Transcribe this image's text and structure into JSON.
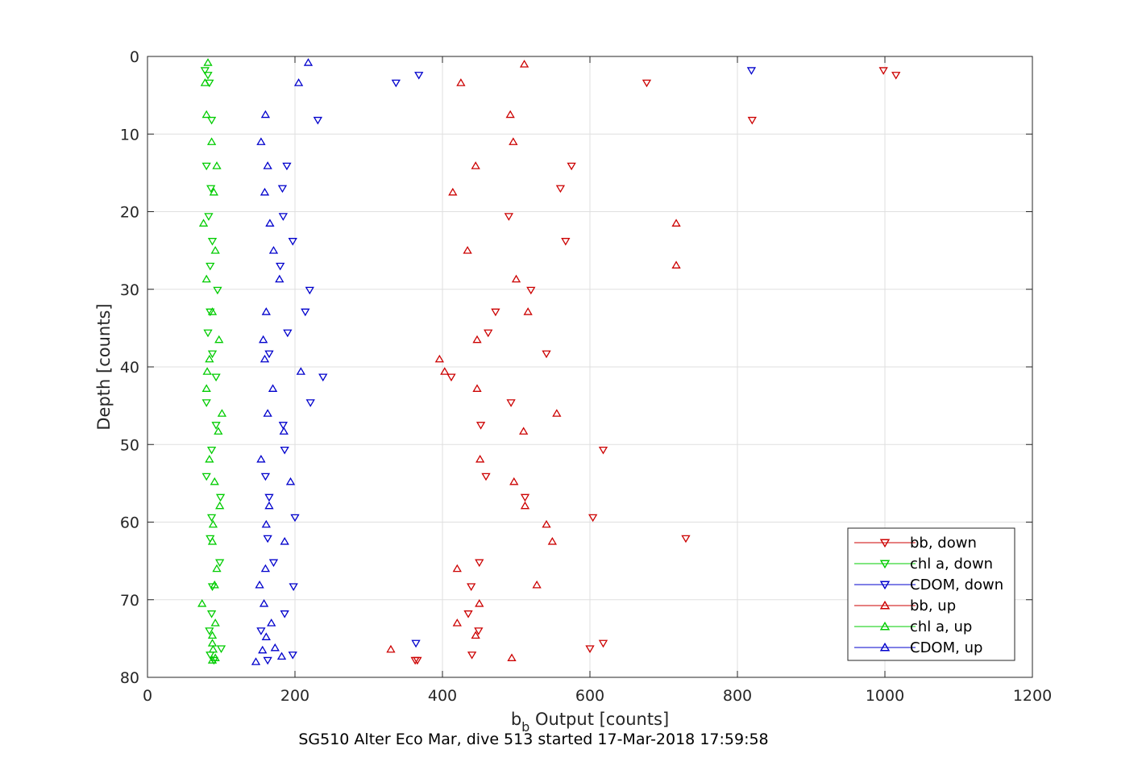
{
  "chart_data": {
    "type": "scatter",
    "xlabel_main": "b",
    "xlabel_sub": "b",
    "xlabel_rest": " Output [counts]",
    "ylabel": "Depth [counts]",
    "caption": "SG510 Alter Eco Mar, dive 513 started 17-Mar-2018 17:59:58",
    "xlim": [
      0,
      1200
    ],
    "ylim": [
      0,
      80
    ],
    "y_reversed": true,
    "grid": true,
    "x_ticks": [
      "0",
      "200",
      "400",
      "600",
      "800",
      "1000",
      "1200"
    ],
    "y_ticks": [
      "0",
      "10",
      "20",
      "30",
      "40",
      "50",
      "60",
      "70",
      "80"
    ],
    "legend_position": "bottom-right",
    "series": [
      {
        "name": "bb, down",
        "color": "#cc0000",
        "marker": "triangle-down",
        "points": [
          [
            1015,
            2.4
          ],
          [
            998,
            1.8
          ],
          [
            677,
            3.4
          ],
          [
            820,
            8.2
          ],
          [
            575,
            14.1
          ],
          [
            560,
            17
          ],
          [
            490,
            20.6
          ],
          [
            567,
            23.8
          ],
          [
            520,
            30.1
          ],
          [
            472,
            32.9
          ],
          [
            462,
            35.6
          ],
          [
            541,
            38.3
          ],
          [
            412,
            41.3
          ],
          [
            493,
            44.6
          ],
          [
            452,
            47.5
          ],
          [
            618,
            50.7
          ],
          [
            459,
            54.1
          ],
          [
            512,
            56.8
          ],
          [
            604,
            59.4
          ],
          [
            730,
            62.1
          ],
          [
            450,
            65.2
          ],
          [
            439,
            68.3
          ],
          [
            435,
            71.8
          ],
          [
            449,
            74
          ],
          [
            618,
            75.6
          ],
          [
            600,
            76.3
          ],
          [
            440,
            77.1
          ],
          [
            366,
            77.8
          ],
          [
            363,
            77.8
          ]
        ]
      },
      {
        "name": "chl a, down",
        "color": "#00cc00",
        "marker": "triangle-down",
        "points": [
          [
            78,
            1.8
          ],
          [
            82,
            2.4
          ],
          [
            84,
            3.4
          ],
          [
            87,
            8.2
          ],
          [
            80,
            14.1
          ],
          [
            86,
            17
          ],
          [
            83,
            20.6
          ],
          [
            88,
            23.8
          ],
          [
            85,
            27
          ],
          [
            95,
            30.1
          ],
          [
            85,
            32.9
          ],
          [
            82,
            35.6
          ],
          [
            88,
            38.3
          ],
          [
            93,
            41.3
          ],
          [
            80,
            44.6
          ],
          [
            93,
            47.5
          ],
          [
            87,
            50.7
          ],
          [
            80,
            54.1
          ],
          [
            99,
            56.8
          ],
          [
            87,
            59.4
          ],
          [
            85,
            62.1
          ],
          [
            98,
            65.2
          ],
          [
            88,
            68.3
          ],
          [
            87,
            71.8
          ],
          [
            84,
            74
          ],
          [
            100,
            76.3
          ],
          [
            85,
            77.1
          ],
          [
            90,
            77.8
          ]
        ]
      },
      {
        "name": "CDOM, down",
        "color": "#0000cc",
        "marker": "triangle-down",
        "points": [
          [
            819,
            1.8
          ],
          [
            368,
            2.4
          ],
          [
            337,
            3.4
          ],
          [
            231,
            8.2
          ],
          [
            189,
            14.1
          ],
          [
            183,
            17
          ],
          [
            184,
            20.6
          ],
          [
            197,
            23.8
          ],
          [
            180,
            27
          ],
          [
            220,
            30.1
          ],
          [
            214,
            32.9
          ],
          [
            190,
            35.6
          ],
          [
            165,
            38.3
          ],
          [
            238,
            41.3
          ],
          [
            221,
            44.6
          ],
          [
            184,
            47.5
          ],
          [
            186,
            50.7
          ],
          [
            160,
            54.1
          ],
          [
            165,
            56.8
          ],
          [
            200,
            59.4
          ],
          [
            163,
            62.1
          ],
          [
            171,
            65.2
          ],
          [
            198,
            68.3
          ],
          [
            186,
            71.8
          ],
          [
            154,
            74
          ],
          [
            364,
            75.6
          ],
          [
            197,
            77.1
          ],
          [
            163,
            77.8
          ]
        ]
      },
      {
        "name": "bb, up",
        "color": "#cc0000",
        "marker": "triangle-up",
        "points": [
          [
            511,
            1
          ],
          [
            425,
            3.4
          ],
          [
            492,
            7.5
          ],
          [
            496,
            11
          ],
          [
            445,
            14.1
          ],
          [
            414,
            17.5
          ],
          [
            717,
            21.5
          ],
          [
            434,
            25
          ],
          [
            717,
            26.9
          ],
          [
            500,
            28.7
          ],
          [
            516,
            32.9
          ],
          [
            447,
            36.5
          ],
          [
            396,
            39
          ],
          [
            403,
            40.6
          ],
          [
            447,
            42.8
          ],
          [
            555,
            46
          ],
          [
            510,
            48.3
          ],
          [
            451,
            51.9
          ],
          [
            497,
            54.8
          ],
          [
            512,
            57.9
          ],
          [
            541,
            60.3
          ],
          [
            549,
            62.5
          ],
          [
            420,
            66
          ],
          [
            528,
            68.1
          ],
          [
            450,
            70.5
          ],
          [
            420,
            73
          ],
          [
            445,
            74.6
          ],
          [
            330,
            76.4
          ],
          [
            494,
            77.5
          ]
        ]
      },
      {
        "name": "chl a, up",
        "color": "#00cc00",
        "marker": "triangle-up",
        "points": [
          [
            82,
            0.8
          ],
          [
            78,
            3.4
          ],
          [
            80,
            7.5
          ],
          [
            87,
            11
          ],
          [
            94,
            14.1
          ],
          [
            90,
            17.5
          ],
          [
            76,
            21.5
          ],
          [
            92,
            25
          ],
          [
            80,
            28.7
          ],
          [
            88,
            32.9
          ],
          [
            97,
            36.5
          ],
          [
            84,
            39
          ],
          [
            81,
            40.6
          ],
          [
            80,
            42.8
          ],
          [
            101,
            46
          ],
          [
            96,
            48.3
          ],
          [
            84,
            51.9
          ],
          [
            91,
            54.8
          ],
          [
            98,
            57.9
          ],
          [
            89,
            60.3
          ],
          [
            88,
            62.5
          ],
          [
            94,
            66
          ],
          [
            91,
            68.1
          ],
          [
            74,
            70.5
          ],
          [
            92,
            73
          ],
          [
            88,
            74.6
          ],
          [
            88,
            75.6
          ],
          [
            89,
            76.4
          ],
          [
            92,
            77.5
          ],
          [
            88,
            77.8
          ]
        ]
      },
      {
        "name": "CDOM, up",
        "color": "#0000cc",
        "marker": "triangle-up",
        "points": [
          [
            218,
            0.8
          ],
          [
            205,
            3.4
          ],
          [
            160,
            7.5
          ],
          [
            154,
            11
          ],
          [
            163,
            14.1
          ],
          [
            159,
            17.5
          ],
          [
            166,
            21.5
          ],
          [
            171,
            25
          ],
          [
            179,
            28.7
          ],
          [
            161,
            32.9
          ],
          [
            157,
            36.5
          ],
          [
            159,
            39
          ],
          [
            208,
            40.6
          ],
          [
            170,
            42.8
          ],
          [
            163,
            46
          ],
          [
            185,
            48.3
          ],
          [
            154,
            51.9
          ],
          [
            194,
            54.8
          ],
          [
            165,
            57.9
          ],
          [
            161,
            60.3
          ],
          [
            186,
            62.5
          ],
          [
            160,
            66
          ],
          [
            152,
            68.1
          ],
          [
            158,
            70.5
          ],
          [
            168,
            73
          ],
          [
            161,
            74.8
          ],
          [
            173,
            76.2
          ],
          [
            156,
            76.5
          ],
          [
            182,
            77.3
          ],
          [
            147,
            78
          ]
        ]
      }
    ]
  }
}
